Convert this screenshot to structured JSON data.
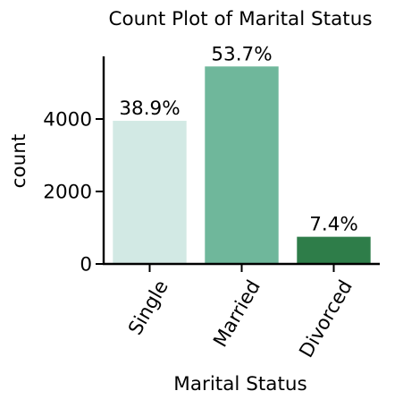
{
  "chart_data": {
    "type": "bar",
    "title": "Count Plot of Marital Status",
    "xlabel": "Marital Status",
    "ylabel": "count",
    "categories": [
      "Single",
      "Married",
      "Divorced"
    ],
    "values": [
      3950,
      5450,
      750
    ],
    "data_labels": [
      "38.9%",
      "53.7%",
      "7.4%"
    ],
    "colors": [
      "#d2e9e4",
      "#6fb79b",
      "#2e7d49"
    ],
    "yticks": [
      0,
      2000,
      4000
    ],
    "ylim": [
      0,
      5700
    ],
    "grid": false,
    "legend": "none"
  }
}
